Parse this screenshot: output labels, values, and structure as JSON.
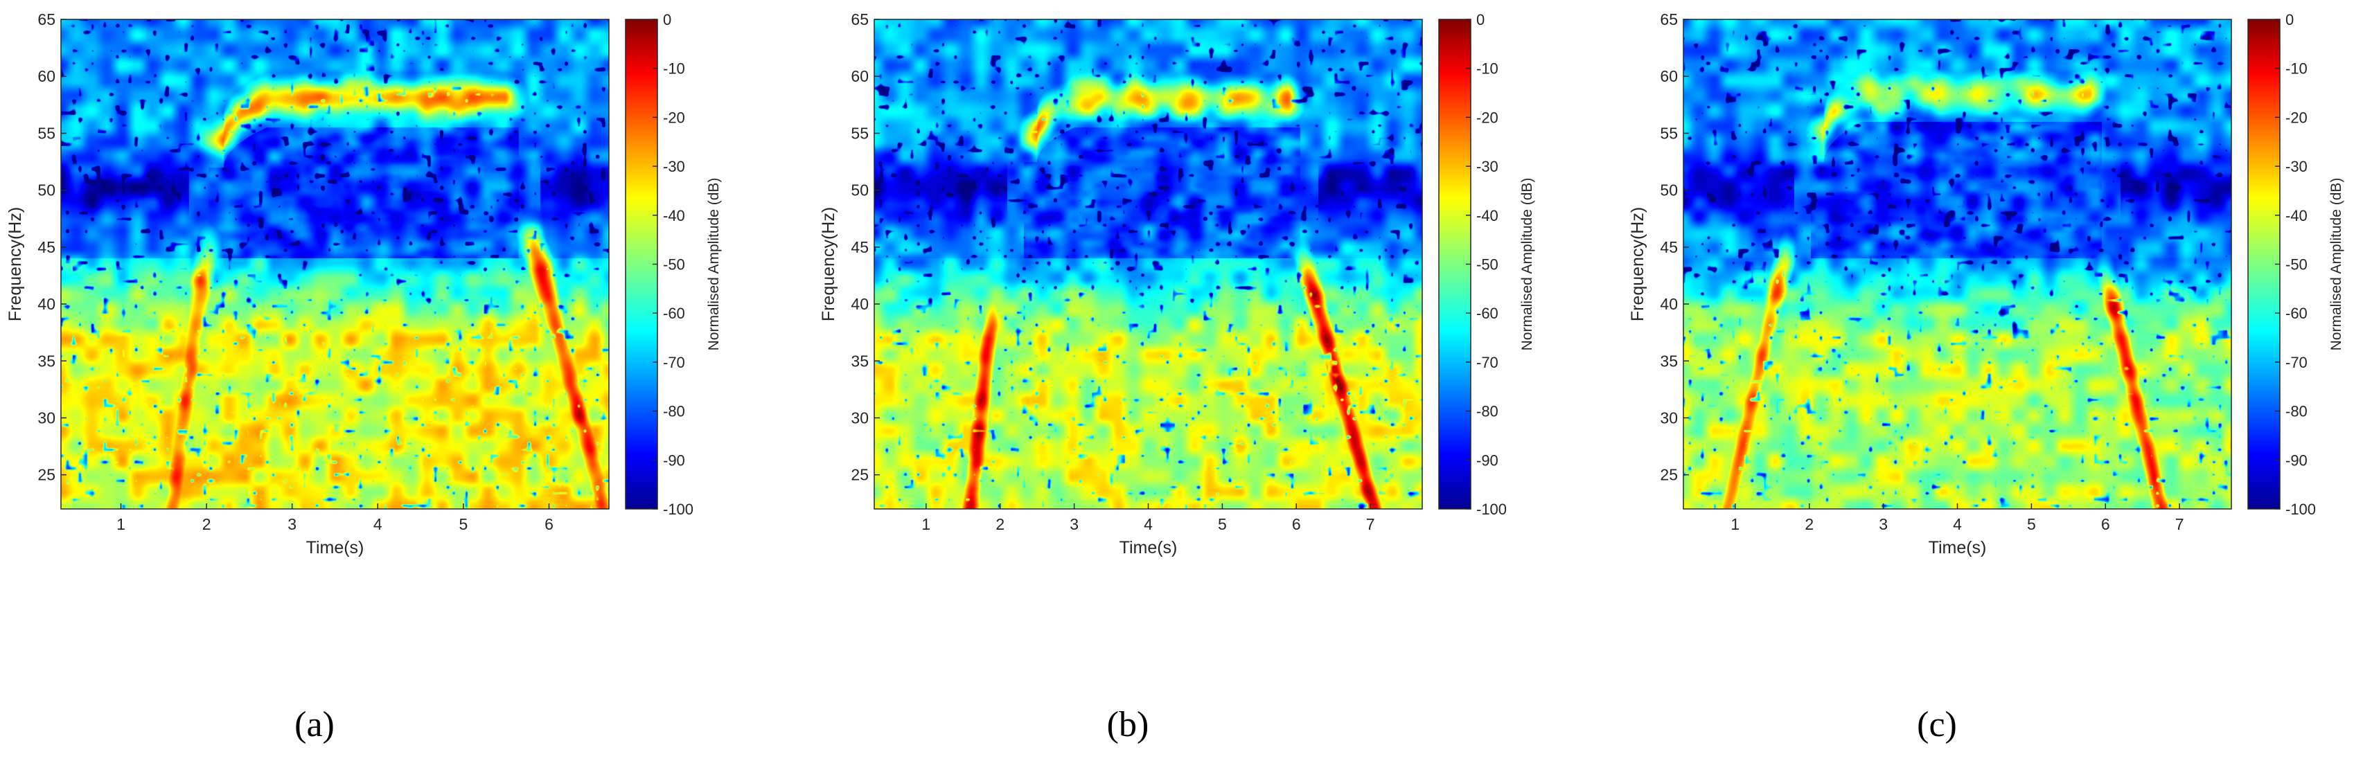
{
  "chart_data": [
    {
      "type": "heatmap",
      "caption": "(a)",
      "xlabel": "Time(s)",
      "ylabel": "Frequency(Hz)",
      "xlim": [
        0.3,
        6.7
      ],
      "ylim": [
        22,
        65
      ],
      "xticks": [
        "1",
        "2",
        "3",
        "4",
        "5",
        "6"
      ],
      "yticks": [
        "25",
        "30",
        "35",
        "40",
        "45",
        "50",
        "55",
        "60",
        "65"
      ],
      "colorbar": {
        "label": "Normalised Amplitude (dB)",
        "range": [
          -100,
          0
        ],
        "ticks": [
          "0",
          "-10",
          "-20",
          "-30",
          "-40",
          "-50",
          "-60",
          "-70",
          "-80",
          "-90",
          "-100"
        ],
        "colormap": "jet"
      },
      "features": {
        "arc": {
          "start_time": 2.2,
          "end_time": 5.5,
          "freq_top": 58.0,
          "freq_start": 54.5,
          "level_db": -30,
          "ripple": false
        },
        "streak_left": {
          "time_at_low": 1.6,
          "time_at_high": 2.0,
          "freq_high": 45,
          "level_db": -22
        },
        "streak_right": {
          "time_at_low": 6.65,
          "time_at_high": 5.8,
          "freq_high": 46,
          "level_db": -15
        },
        "low_band": {
          "freq_range": [
            22,
            37
          ],
          "level_db": -38
        },
        "notch_50hz": {
          "freq": 50,
          "level_db": -95
        }
      }
    },
    {
      "type": "heatmap",
      "caption": "(b)",
      "xlabel": "Time(s)",
      "ylabel": "Frequency(Hz)",
      "xlim": [
        0.3,
        7.7
      ],
      "ylim": [
        22,
        65
      ],
      "xticks": [
        "1",
        "2",
        "3",
        "4",
        "5",
        "6",
        "7"
      ],
      "yticks": [
        "25",
        "30",
        "35",
        "40",
        "45",
        "50",
        "55",
        "60",
        "65"
      ],
      "colorbar": {
        "label": "Normalised Amplitude (dB)",
        "range": [
          -100,
          0
        ],
        "ticks": [
          "0",
          "-10",
          "-20",
          "-30",
          "-40",
          "-50",
          "-60",
          "-70",
          "-80",
          "-90",
          "-100"
        ],
        "colormap": "jet"
      },
      "features": {
        "arc": {
          "start_time": 2.5,
          "end_time": 5.9,
          "freq_top": 58.0,
          "freq_start": 55.0,
          "level_db": -28,
          "ripple": true
        },
        "streak_left": {
          "time_at_low": 1.6,
          "time_at_high": 1.9,
          "freq_high": 40,
          "level_db": -12
        },
        "streak_right": {
          "time_at_low": 7.05,
          "time_at_high": 6.1,
          "freq_high": 44,
          "level_db": -10
        },
        "low_band": {
          "freq_range": [
            22,
            37
          ],
          "level_db": -42
        },
        "notch_50hz": {
          "freq": 50,
          "level_db": -95
        }
      }
    },
    {
      "type": "heatmap",
      "caption": "(c)",
      "xlabel": "Time(s)",
      "ylabel": "Frequency(Hz)",
      "xlim": [
        0.3,
        7.7
      ],
      "ylim": [
        22,
        65
      ],
      "xticks": [
        "1",
        "2",
        "3",
        "4",
        "5",
        "6",
        "7"
      ],
      "yticks": [
        "25",
        "30",
        "35",
        "40",
        "45",
        "50",
        "55",
        "60",
        "65"
      ],
      "colorbar": {
        "label": "Normalised Amplitude (dB)",
        "range": [
          -100,
          0
        ],
        "ticks": [
          "0",
          "-10",
          "-20",
          "-30",
          "-40",
          "-50",
          "-60",
          "-70",
          "-80",
          "-90",
          "-100"
        ],
        "colormap": "jet"
      },
      "features": {
        "arc": {
          "start_time": 2.2,
          "end_time": 5.8,
          "freq_top": 58.5,
          "freq_start": 55.0,
          "level_db": -36,
          "ripple": true
        },
        "streak_left": {
          "time_at_low": 0.9,
          "time_at_high": 1.7,
          "freq_high": 45,
          "level_db": -25
        },
        "streak_right": {
          "time_at_low": 6.75,
          "time_at_high": 6.0,
          "freq_high": 43,
          "level_db": -14
        },
        "low_band": {
          "freq_range": [
            22,
            37
          ],
          "level_db": -45
        },
        "notch_50hz": {
          "freq": 50,
          "level_db": -95
        }
      }
    }
  ]
}
